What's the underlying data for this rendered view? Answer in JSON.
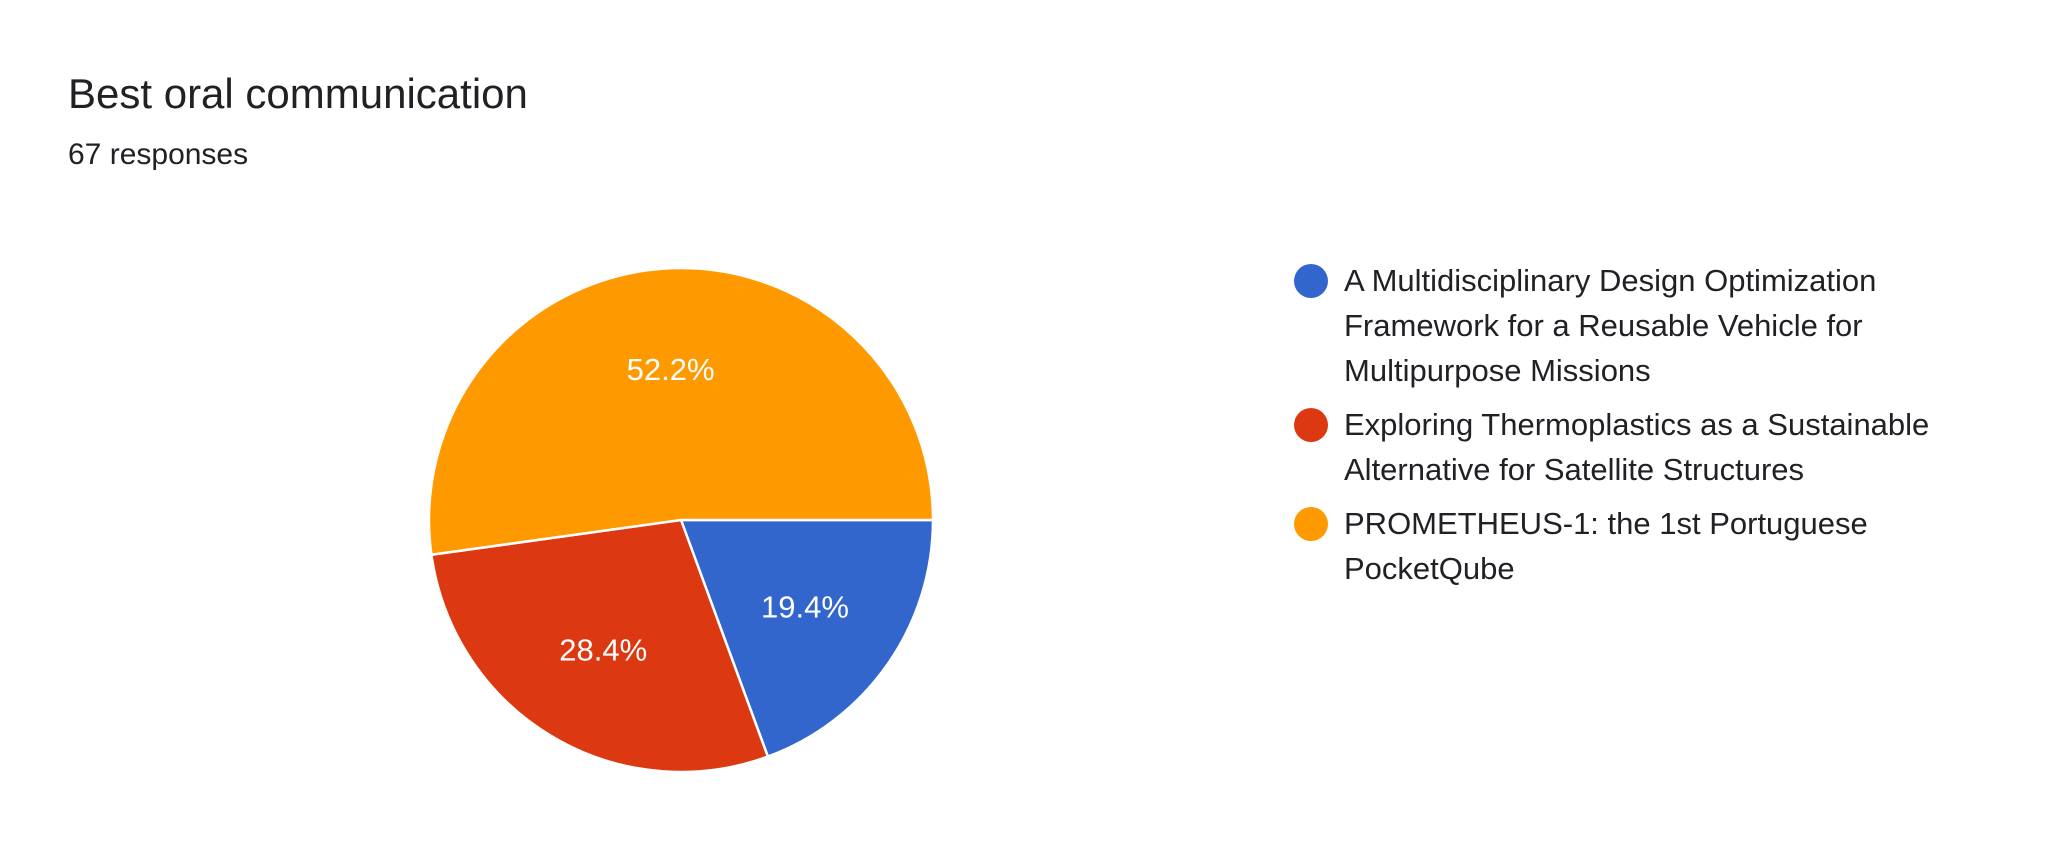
{
  "title": "Best oral communication",
  "subtitle": "67 responses",
  "chart_data": {
    "type": "pie",
    "title": "Best oral communication",
    "subtitle": "67 responses",
    "slices": [
      {
        "label": "A Multidisciplinary Design Optimization Framework for a Reusable Vehicle for Multipurpose Missions",
        "value": 19.4,
        "display": "19.4%",
        "color": "#3366cc"
      },
      {
        "label": "Exploring Thermoplastics as a Sustainable Alternative for Satellite Structures",
        "value": 28.4,
        "display": "28.4%",
        "color": "#dc3912"
      },
      {
        "label": "PROMETHEUS-1: the 1st Portuguese PocketQube",
        "value": 52.2,
        "display": "52.2%",
        "color": "#ff9900"
      }
    ],
    "legend_position": "right"
  }
}
